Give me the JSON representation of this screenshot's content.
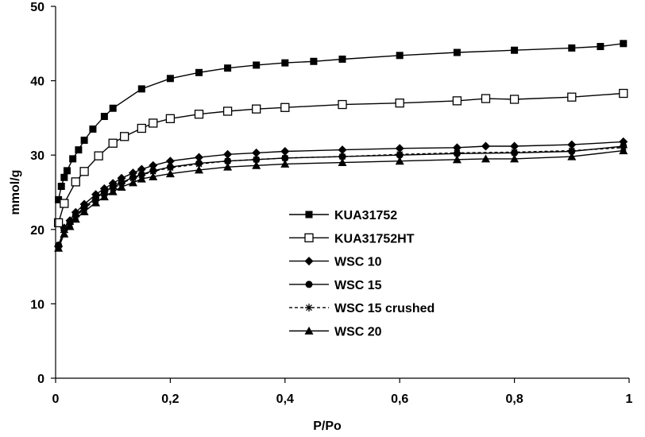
{
  "chart_data": {
    "type": "line",
    "title": "",
    "xlabel": "P/Po",
    "ylabel": "mmol/g",
    "xlim": [
      0,
      1
    ],
    "ylim": [
      0,
      50
    ],
    "xticks": [
      0,
      0.2,
      0.4,
      0.6,
      0.8,
      1
    ],
    "xtick_labels": [
      "0",
      "0,2",
      "0,4",
      "0,6",
      "0,8",
      "1"
    ],
    "yticks": [
      0,
      10,
      20,
      30,
      40,
      50
    ],
    "ytick_labels": [
      "0",
      "10",
      "20",
      "30",
      "40",
      "50"
    ],
    "grid": false,
    "legend_position": "center",
    "series": [
      {
        "name": "KUA31752",
        "marker": "filled-square",
        "dashed": false,
        "x": [
          0.005,
          0.01,
          0.015,
          0.02,
          0.03,
          0.04,
          0.05,
          0.065,
          0.085,
          0.1,
          0.15,
          0.2,
          0.25,
          0.3,
          0.35,
          0.4,
          0.45,
          0.5,
          0.6,
          0.7,
          0.8,
          0.9,
          0.95,
          0.99
        ],
        "y": [
          24,
          25.8,
          27,
          27.9,
          29.5,
          30.7,
          32,
          33.5,
          35.2,
          36.3,
          38.9,
          40.3,
          41.1,
          41.7,
          42.1,
          42.4,
          42.6,
          42.9,
          43.4,
          43.8,
          44.1,
          44.4,
          44.6,
          45
        ]
      },
      {
        "name": "KUA31752HT",
        "marker": "open-square",
        "dashed": false,
        "x": [
          0.005,
          0.015,
          0.035,
          0.05,
          0.075,
          0.1,
          0.12,
          0.15,
          0.17,
          0.2,
          0.25,
          0.3,
          0.35,
          0.4,
          0.5,
          0.6,
          0.7,
          0.75,
          0.8,
          0.9,
          0.99
        ],
        "y": [
          20.9,
          23.5,
          26.4,
          27.8,
          29.9,
          31.6,
          32.5,
          33.6,
          34.3,
          34.9,
          35.5,
          35.9,
          36.2,
          36.4,
          36.8,
          37,
          37.3,
          37.6,
          37.5,
          37.8,
          38.3
        ]
      },
      {
        "name": "WSC 10",
        "marker": "filled-diamond",
        "dashed": false,
        "x": [
          0.005,
          0.015,
          0.025,
          0.035,
          0.05,
          0.07,
          0.085,
          0.1,
          0.115,
          0.135,
          0.15,
          0.17,
          0.2,
          0.25,
          0.3,
          0.35,
          0.4,
          0.5,
          0.6,
          0.7,
          0.75,
          0.8,
          0.9,
          0.99
        ],
        "y": [
          17.7,
          20.2,
          21.2,
          22.3,
          23.4,
          24.7,
          25.5,
          26.2,
          26.9,
          27.6,
          28.1,
          28.6,
          29.2,
          29.7,
          30.1,
          30.3,
          30.5,
          30.7,
          30.9,
          31,
          31.2,
          31.2,
          31.4,
          31.8
        ]
      },
      {
        "name": "WSC 15",
        "marker": "filled-circle",
        "dashed": false,
        "x": [
          0.005,
          0.015,
          0.025,
          0.035,
          0.05,
          0.07,
          0.085,
          0.1,
          0.115,
          0.135,
          0.15,
          0.17,
          0.2,
          0.25,
          0.3,
          0.35,
          0.4,
          0.5,
          0.6,
          0.7,
          0.8,
          0.9,
          0.99
        ],
        "y": [
          17.9,
          19.9,
          20.9,
          21.9,
          23,
          24.2,
          25,
          25.7,
          26.3,
          27,
          27.4,
          27.9,
          28.4,
          28.9,
          29.2,
          29.4,
          29.6,
          29.8,
          30,
          30.2,
          30.3,
          30.5,
          31.2
        ]
      },
      {
        "name": "WSC 15 crushed",
        "marker": "asterisk",
        "dashed": true,
        "x": [
          0.005,
          0.015,
          0.025,
          0.035,
          0.05,
          0.07,
          0.085,
          0.1,
          0.115,
          0.135,
          0.15,
          0.17,
          0.2,
          0.25,
          0.3,
          0.35,
          0.4,
          0.5,
          0.6,
          0.7,
          0.8,
          0.9,
          0.99
        ],
        "y": [
          17.8,
          19.6,
          20.7,
          21.7,
          22.8,
          24,
          24.8,
          25.5,
          26.2,
          26.9,
          27.3,
          27.8,
          28.3,
          28.8,
          29.2,
          29.4,
          29.6,
          29.8,
          30.1,
          30.3,
          30.4,
          30.6,
          31
        ]
      },
      {
        "name": "WSC 20",
        "marker": "filled-triangle",
        "dashed": false,
        "x": [
          0.005,
          0.015,
          0.025,
          0.035,
          0.05,
          0.07,
          0.085,
          0.1,
          0.115,
          0.135,
          0.15,
          0.17,
          0.2,
          0.25,
          0.3,
          0.35,
          0.4,
          0.5,
          0.6,
          0.7,
          0.75,
          0.8,
          0.9,
          0.99
        ],
        "y": [
          17.5,
          19.4,
          20.4,
          21.4,
          22.4,
          23.6,
          24.4,
          25.1,
          25.7,
          26.3,
          26.8,
          27.1,
          27.5,
          28,
          28.4,
          28.6,
          28.8,
          29,
          29.2,
          29.4,
          29.5,
          29.5,
          29.8,
          30.6
        ]
      }
    ]
  }
}
